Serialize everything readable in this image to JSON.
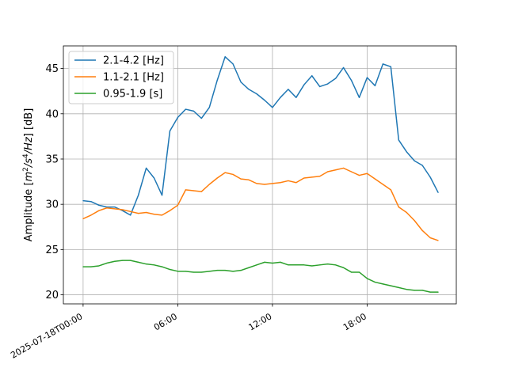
{
  "chart_data": {
    "type": "line",
    "ylabel_prefix": "Amplitude [",
    "ylabel_unit_parts": [
      "m",
      "2",
      "/s",
      "4",
      "/Hz",
      "] [dB]"
    ],
    "ylim": [
      19.0,
      47.5
    ],
    "yticks": [
      20,
      25,
      30,
      35,
      40,
      45
    ],
    "x_start": "2025-07-18T00:00",
    "xticks": [
      {
        "label": "2025-07-18T00:00",
        "hour": 0
      },
      {
        "label": "06:00",
        "hour": 6
      },
      {
        "label": "12:00",
        "hour": 12
      },
      {
        "label": "18:00",
        "hour": 18
      }
    ],
    "xlim_hours": [
      -1.25,
      23.65
    ],
    "grid": true,
    "legend_position": "top-left",
    "hours": [
      0.0,
      0.5,
      1.0,
      1.5,
      2.0,
      2.5,
      3.0,
      3.5,
      4.0,
      4.5,
      5.0,
      5.5,
      6.0,
      6.5,
      7.0,
      7.5,
      8.0,
      8.5,
      9.0,
      9.5,
      10.0,
      10.5,
      11.0,
      11.5,
      12.0,
      12.5,
      13.0,
      13.5,
      14.0,
      14.5,
      15.0,
      15.5,
      16.0,
      16.5,
      17.0,
      17.5,
      18.0,
      18.5,
      19.0,
      19.5,
      20.0,
      20.5,
      21.0,
      21.5,
      22.0,
      22.5
    ],
    "series": [
      {
        "name": "2.1-4.2 [Hz]",
        "color": "#1f77b4",
        "values": [
          30.4,
          30.3,
          29.9,
          29.7,
          29.7,
          29.3,
          28.8,
          31.0,
          34.0,
          32.9,
          31.0,
          38.1,
          39.6,
          40.5,
          40.3,
          39.5,
          40.7,
          43.7,
          46.3,
          45.5,
          43.5,
          42.7,
          42.2,
          41.5,
          40.7,
          41.8,
          42.7,
          41.8,
          43.2,
          44.2,
          43.0,
          43.3,
          43.9,
          45.1,
          43.7,
          41.8,
          44.0,
          43.1,
          45.5,
          45.2,
          37.1,
          35.8,
          34.8,
          34.3,
          33.0,
          31.3
        ]
      },
      {
        "name": "1.1-2.1 [Hz]",
        "color": "#ff7f0e",
        "values": [
          28.4,
          28.8,
          29.3,
          29.6,
          29.5,
          29.4,
          29.2,
          29.0,
          29.1,
          28.9,
          28.8,
          29.3,
          29.9,
          31.6,
          31.5,
          31.4,
          32.2,
          32.9,
          33.5,
          33.3,
          32.8,
          32.7,
          32.3,
          32.2,
          32.3,
          32.4,
          32.6,
          32.4,
          32.9,
          33.0,
          33.1,
          33.6,
          33.8,
          34.0,
          33.6,
          33.2,
          33.4,
          32.8,
          32.2,
          31.6,
          29.7,
          29.1,
          28.2,
          27.1,
          26.3,
          26.0
        ]
      },
      {
        "name": "0.95-1.9 [s]",
        "color": "#2ca02c",
        "values": [
          23.1,
          23.1,
          23.2,
          23.5,
          23.7,
          23.8,
          23.8,
          23.6,
          23.4,
          23.3,
          23.1,
          22.8,
          22.6,
          22.6,
          22.5,
          22.5,
          22.6,
          22.7,
          22.7,
          22.6,
          22.7,
          23.0,
          23.3,
          23.6,
          23.5,
          23.6,
          23.3,
          23.3,
          23.3,
          23.2,
          23.3,
          23.4,
          23.3,
          23.0,
          22.5,
          22.5,
          21.8,
          21.4,
          21.2,
          21.0,
          20.8,
          20.6,
          20.5,
          20.5,
          20.3,
          20.3
        ]
      }
    ]
  }
}
